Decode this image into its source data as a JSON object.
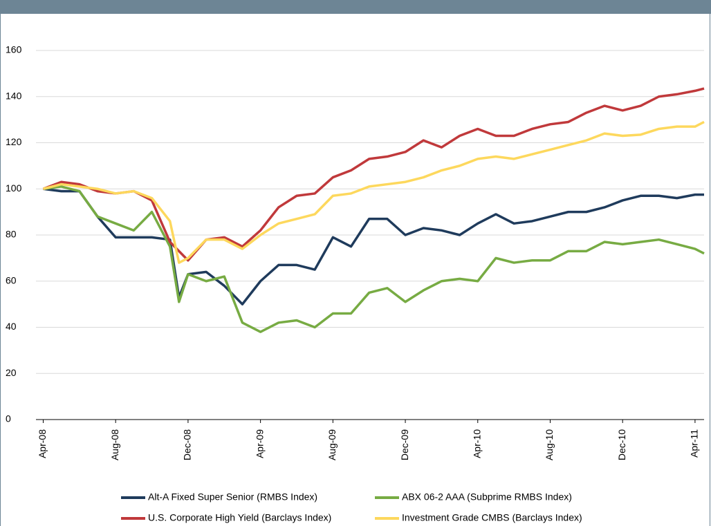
{
  "chart_data": {
    "type": "line",
    "x": [
      0,
      1,
      2,
      3,
      4,
      5,
      6,
      7,
      7.5,
      8,
      9,
      10,
      11,
      12,
      13,
      14,
      15,
      16,
      17,
      18,
      19,
      20,
      21,
      22,
      23,
      24,
      25,
      26,
      27,
      28,
      29,
      30,
      31,
      32,
      33,
      34,
      35,
      36,
      36.5
    ],
    "xlim": [
      -0.4,
      36.5
    ],
    "xticks": [
      {
        "value": 0,
        "label": "Apr-08"
      },
      {
        "value": 4,
        "label": "Aug-08"
      },
      {
        "value": 8,
        "label": "Dec-08"
      },
      {
        "value": 12,
        "label": "Apr-09"
      },
      {
        "value": 16,
        "label": "Aug-09"
      },
      {
        "value": 20,
        "label": "Dec-09"
      },
      {
        "value": 24,
        "label": "Apr-10"
      },
      {
        "value": 28,
        "label": "Aug-10"
      },
      {
        "value": 32,
        "label": "Dec-10"
      },
      {
        "value": 36,
        "label": "Apr-11"
      }
    ],
    "ylim": [
      0,
      160
    ],
    "yticks": [
      0,
      20,
      40,
      60,
      80,
      100,
      120,
      140,
      160
    ],
    "grid": true,
    "series": [
      {
        "name": "Alt-A Fixed Super Senior (RMBS Index)",
        "color": "#1f3b5c",
        "values": [
          100,
          99,
          99,
          88,
          79,
          79,
          79,
          78,
          53,
          63,
          64,
          58,
          50,
          60,
          67,
          67,
          65,
          79,
          75,
          87,
          87,
          80,
          83,
          82,
          80,
          85,
          89,
          85,
          86,
          88,
          90,
          90,
          92,
          95,
          97,
          97,
          96,
          97.5,
          97.5
        ]
      },
      {
        "name": "ABX 06-2 AAA (Subprime RMBS Index)",
        "color": "#77ab43",
        "values": [
          100,
          101,
          99,
          88,
          85,
          82,
          90,
          75,
          51,
          63,
          60,
          62,
          42,
          38,
          42,
          43,
          40,
          46,
          46,
          55,
          57,
          51,
          56,
          60,
          61,
          60,
          70,
          68,
          69,
          69,
          73,
          73,
          77,
          76,
          77,
          78,
          76,
          74,
          72
        ]
      },
      {
        "name": "U.S. Corporate High Yield (Barclays Index)",
        "color": "#c0393b",
        "values": [
          100,
          103,
          102,
          99,
          98,
          99,
          95,
          77,
          73,
          69,
          78,
          79,
          75,
          82,
          92,
          97,
          98,
          105,
          108,
          113,
          114,
          116,
          121,
          118,
          123,
          126,
          123,
          123,
          126,
          128,
          129,
          133,
          136,
          134,
          136,
          140,
          141,
          142.5,
          143.5
        ]
      },
      {
        "name": "Investment Grade CMBS (Barclays Index)",
        "color": "#fdd85d",
        "values": [
          100,
          102,
          101,
          100,
          98,
          99,
          96,
          86,
          68,
          70,
          78,
          78,
          74,
          80,
          85,
          87,
          89,
          97,
          98,
          101,
          102,
          103,
          105,
          108,
          110,
          113,
          114,
          113,
          115,
          117,
          119,
          121,
          124,
          123,
          123.5,
          126,
          127,
          127,
          129
        ]
      }
    ]
  }
}
